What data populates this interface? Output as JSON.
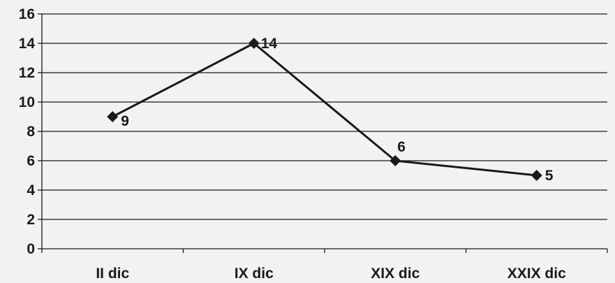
{
  "chart_data": {
    "type": "line",
    "categories": [
      "II dic",
      "IX dic",
      "XIX dic",
      "XXIX dic"
    ],
    "series": [
      {
        "values": [
          9,
          14,
          6,
          5
        ]
      }
    ],
    "ylim": [
      0,
      16
    ],
    "yticks": [
      0,
      2,
      4,
      6,
      8,
      10,
      12,
      14,
      16
    ],
    "grid": true,
    "legend": "none",
    "data_labels": [
      "9",
      "14",
      "6",
      "5"
    ],
    "colors": {
      "line": "#1a1a1a",
      "grid": "#1a1a1a",
      "background": "#f2f2f2"
    }
  }
}
